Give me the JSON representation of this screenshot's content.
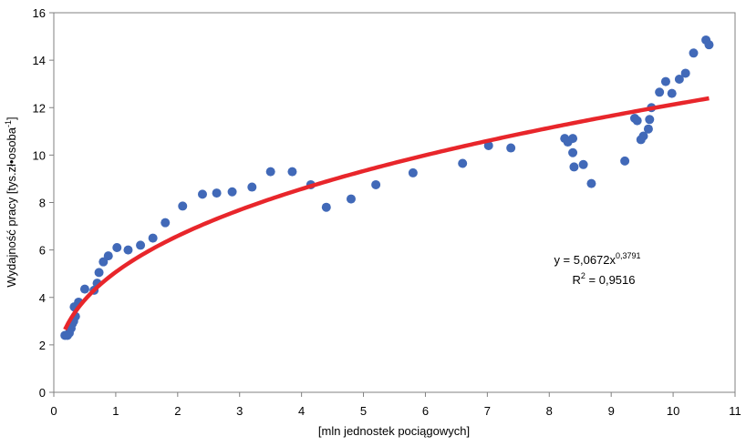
{
  "chart_data": {
    "type": "scatter",
    "x_label": "[mln jednostek pociągowych]",
    "y_label": {
      "text": "Wydajność pracy [tys.zł•osoba",
      "exponent": "-1",
      "suffix": "]"
    },
    "x": [
      0.18,
      0.22,
      0.25,
      0.28,
      0.3,
      0.32,
      0.35,
      0.33,
      0.4,
      0.5,
      0.65,
      0.7,
      0.73,
      0.8,
      0.88,
      1.02,
      1.2,
      1.4,
      1.6,
      1.8,
      2.08,
      2.4,
      2.63,
      2.88,
      3.2,
      3.5,
      3.85,
      4.15,
      4.4,
      4.8,
      5.2,
      5.8,
      6.6,
      7.02,
      7.38,
      8.25,
      8.3,
      8.38,
      8.38,
      8.4,
      8.55,
      8.68,
      9.22,
      9.38,
      9.42,
      9.48,
      9.52,
      9.6,
      9.62,
      9.65,
      9.78,
      9.88,
      9.98,
      10.1,
      10.2,
      10.33,
      10.53,
      10.58
    ],
    "values": [
      2.4,
      2.4,
      2.5,
      2.7,
      2.9,
      3.0,
      3.2,
      3.6,
      3.8,
      4.35,
      4.3,
      4.6,
      5.05,
      5.5,
      5.75,
      6.1,
      6.0,
      6.2,
      6.5,
      7.15,
      7.85,
      8.35,
      8.4,
      8.45,
      8.65,
      9.3,
      9.3,
      8.75,
      7.8,
      8.15,
      8.75,
      9.25,
      9.65,
      10.4,
      10.3,
      10.7,
      10.55,
      10.7,
      10.1,
      9.5,
      9.6,
      8.8,
      9.75,
      11.55,
      11.45,
      10.65,
      10.8,
      11.1,
      11.5,
      12.0,
      12.65,
      13.1,
      12.6,
      13.2,
      13.45,
      14.3,
      14.85,
      14.65
    ],
    "color": "#4169b8",
    "trendline": {
      "a": 5.0672,
      "b": 0.3791,
      "color": "#e8262b",
      "equation": {
        "text": "y = 5,0672x",
        "exponent": "0,3791"
      },
      "r2": {
        "text": "R",
        "exponent": "2",
        "suffix": " = 0,9516"
      }
    },
    "xlim": [
      0,
      11
    ],
    "xticks": [
      0,
      1,
      2,
      3,
      4,
      5,
      6,
      7,
      8,
      9,
      10,
      11
    ],
    "ylim": [
      0,
      16
    ],
    "yticks": [
      0,
      2,
      4,
      6,
      8,
      10,
      12,
      14,
      16
    ]
  }
}
